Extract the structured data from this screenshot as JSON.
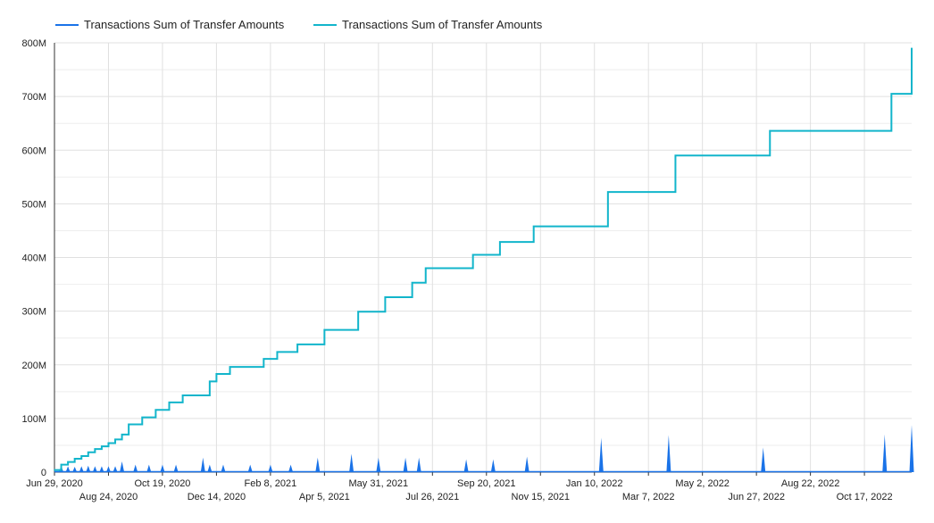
{
  "chart_data": {
    "type": "line",
    "legend": {
      "placement": "top-left",
      "entries": [
        {
          "label": "Transactions Sum of Transfer Amounts",
          "color": "#1a73e8"
        },
        {
          "label": "Transactions Sum of Transfer Amounts",
          "color": "#12b5cb"
        }
      ]
    },
    "y_axis": {
      "ylim": [
        0,
        800000000
      ],
      "ticks": [
        0,
        100000000,
        200000000,
        300000000,
        400000000,
        500000000,
        600000000,
        700000000,
        800000000
      ],
      "tick_labels": [
        "0",
        "100M",
        "200M",
        "300M",
        "400M",
        "500M",
        "600M",
        "700M",
        "800M"
      ]
    },
    "x_axis": {
      "xlim": [
        "2020-06-29",
        "2022-12-05"
      ],
      "ticks": [
        "2020-06-29",
        "2020-08-24",
        "2020-10-19",
        "2020-12-14",
        "2021-02-08",
        "2021-04-05",
        "2021-05-31",
        "2021-07-26",
        "2021-09-20",
        "2021-11-15",
        "2022-01-10",
        "2022-03-07",
        "2022-05-02",
        "2022-06-27",
        "2022-08-22",
        "2022-10-17"
      ],
      "tick_labels": [
        "Jun 29, 2020",
        "Aug 24, 2020",
        "Oct 19, 2020",
        "Dec 14, 2020",
        "Feb 8, 2021",
        "Apr 5, 2021",
        "May 31, 2021",
        "Jul 26, 2021",
        "Sep 20, 2021",
        "Nov 15, 2021",
        "Jan 10, 2022",
        "Mar 7, 2022",
        "May 2, 2022",
        "Jun 27, 2022",
        "Aug 22, 2022",
        "Oct 17, 2022"
      ]
    },
    "grid": true,
    "series": [
      {
        "name": "Transactions Sum of Transfer Amounts",
        "color": "#1a73e8",
        "style": "spikes",
        "points": [
          [
            "2020-07-06",
            12000000
          ],
          [
            "2020-07-13",
            11000000
          ],
          [
            "2020-07-20",
            10000000
          ],
          [
            "2020-07-27",
            11000000
          ],
          [
            "2020-08-03",
            12000000
          ],
          [
            "2020-08-10",
            11000000
          ],
          [
            "2020-08-17",
            11000000
          ],
          [
            "2020-08-24",
            11000000
          ],
          [
            "2020-08-31",
            11000000
          ],
          [
            "2020-09-07",
            20000000
          ],
          [
            "2020-09-21",
            14000000
          ],
          [
            "2020-10-05",
            14000000
          ],
          [
            "2020-10-19",
            14000000
          ],
          [
            "2020-11-02",
            14000000
          ],
          [
            "2020-11-30",
            27000000
          ],
          [
            "2020-12-07",
            14000000
          ],
          [
            "2020-12-21",
            14000000
          ],
          [
            "2021-01-18",
            14000000
          ],
          [
            "2021-02-08",
            14000000
          ],
          [
            "2021-03-01",
            14000000
          ],
          [
            "2021-03-29",
            27000000
          ],
          [
            "2021-05-03",
            34000000
          ],
          [
            "2021-05-31",
            27000000
          ],
          [
            "2021-06-28",
            27000000
          ],
          [
            "2021-07-12",
            27000000
          ],
          [
            "2021-08-30",
            24000000
          ],
          [
            "2021-09-27",
            24000000
          ],
          [
            "2021-11-01",
            29000000
          ],
          [
            "2022-01-17",
            64000000
          ],
          [
            "2022-03-28",
            69000000
          ],
          [
            "2022-07-04",
            46000000
          ],
          [
            "2022-11-07",
            70000000
          ],
          [
            "2022-12-05",
            88000000
          ]
        ]
      },
      {
        "name": "Transactions Sum of Transfer Amounts",
        "color": "#12b5cb",
        "style": "step",
        "points": [
          [
            "2020-06-29",
            4000000
          ],
          [
            "2020-07-06",
            14000000
          ],
          [
            "2020-07-13",
            19000000
          ],
          [
            "2020-07-20",
            25000000
          ],
          [
            "2020-07-27",
            30000000
          ],
          [
            "2020-08-03",
            37000000
          ],
          [
            "2020-08-10",
            43000000
          ],
          [
            "2020-08-17",
            48000000
          ],
          [
            "2020-08-24",
            54000000
          ],
          [
            "2020-08-31",
            61000000
          ],
          [
            "2020-09-07",
            70000000
          ],
          [
            "2020-09-14",
            89000000
          ],
          [
            "2020-09-28",
            102000000
          ],
          [
            "2020-10-12",
            116000000
          ],
          [
            "2020-10-26",
            130000000
          ],
          [
            "2020-11-09",
            143000000
          ],
          [
            "2020-12-07",
            169000000
          ],
          [
            "2020-12-14",
            183000000
          ],
          [
            "2020-12-28",
            196000000
          ],
          [
            "2021-02-01",
            211000000
          ],
          [
            "2021-02-15",
            224000000
          ],
          [
            "2021-03-08",
            238000000
          ],
          [
            "2021-04-05",
            265000000
          ],
          [
            "2021-05-10",
            299000000
          ],
          [
            "2021-06-07",
            326000000
          ],
          [
            "2021-07-05",
            353000000
          ],
          [
            "2021-07-19",
            380000000
          ],
          [
            "2021-09-06",
            405000000
          ],
          [
            "2021-10-04",
            429000000
          ],
          [
            "2021-11-08",
            458000000
          ],
          [
            "2022-01-24",
            522000000
          ],
          [
            "2022-04-04",
            590000000
          ],
          [
            "2022-07-11",
            636000000
          ],
          [
            "2022-11-14",
            705000000
          ],
          [
            "2022-12-05",
            790000000
          ]
        ]
      }
    ]
  }
}
